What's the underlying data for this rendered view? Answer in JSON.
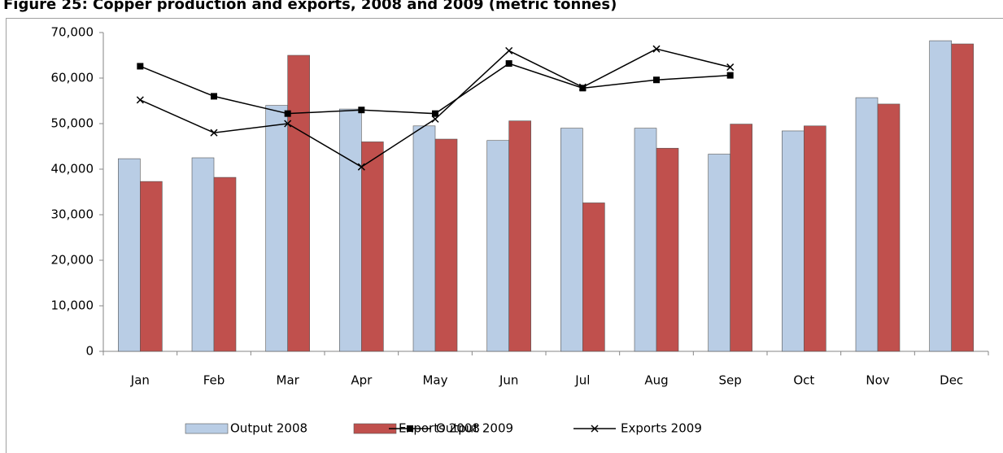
{
  "chart_data": {
    "type": "bar-line",
    "title": "Figure 25: Copper production and exports, 2008 and 2009 (metric tonnes)",
    "categories": [
      "Jan",
      "Feb",
      "Mar",
      "Apr",
      "May",
      "Jun",
      "Jul",
      "Aug",
      "Sep",
      "Oct",
      "Nov",
      "Dec"
    ],
    "series": [
      {
        "name": "Output 2008",
        "type": "bar",
        "color": "#b9cde5",
        "values": [
          42300,
          42500,
          54000,
          53200,
          49500,
          46300,
          49000,
          49000,
          43300,
          48400,
          55700,
          68200
        ]
      },
      {
        "name": "Exports 2008",
        "type": "bar",
        "color": "#c0504d",
        "values": [
          37300,
          38200,
          65000,
          46000,
          46600,
          50600,
          32600,
          44600,
          49900,
          49500,
          54300,
          67500
        ]
      },
      {
        "name": "Output 2009",
        "type": "line",
        "marker": "square",
        "color": "#000000",
        "values": [
          62600,
          56000,
          52200,
          53000,
          52200,
          63200,
          57800,
          59600,
          60600,
          null,
          null,
          null
        ]
      },
      {
        "name": "Exports 2009",
        "type": "line",
        "marker": "x",
        "color": "#000000",
        "values": [
          55200,
          48000,
          50000,
          40500,
          51000,
          66000,
          58000,
          66400,
          62400,
          null,
          null,
          null
        ]
      }
    ],
    "ylim": [
      0,
      70000
    ],
    "yticks": [
      0,
      {
        "value": 10000,
        "label": "10,000"
      },
      {
        "value": 20000,
        "label": "20,000"
      },
      {
        "value": 30000,
        "label": "30,000"
      },
      {
        "value": 40000,
        "label": "40,000"
      },
      {
        "value": 50000,
        "label": "50,000"
      },
      {
        "value": 60000,
        "label": "60,000"
      },
      {
        "value": 70000,
        "label": "70,000"
      }
    ],
    "grid": false,
    "legend": "bottom"
  }
}
